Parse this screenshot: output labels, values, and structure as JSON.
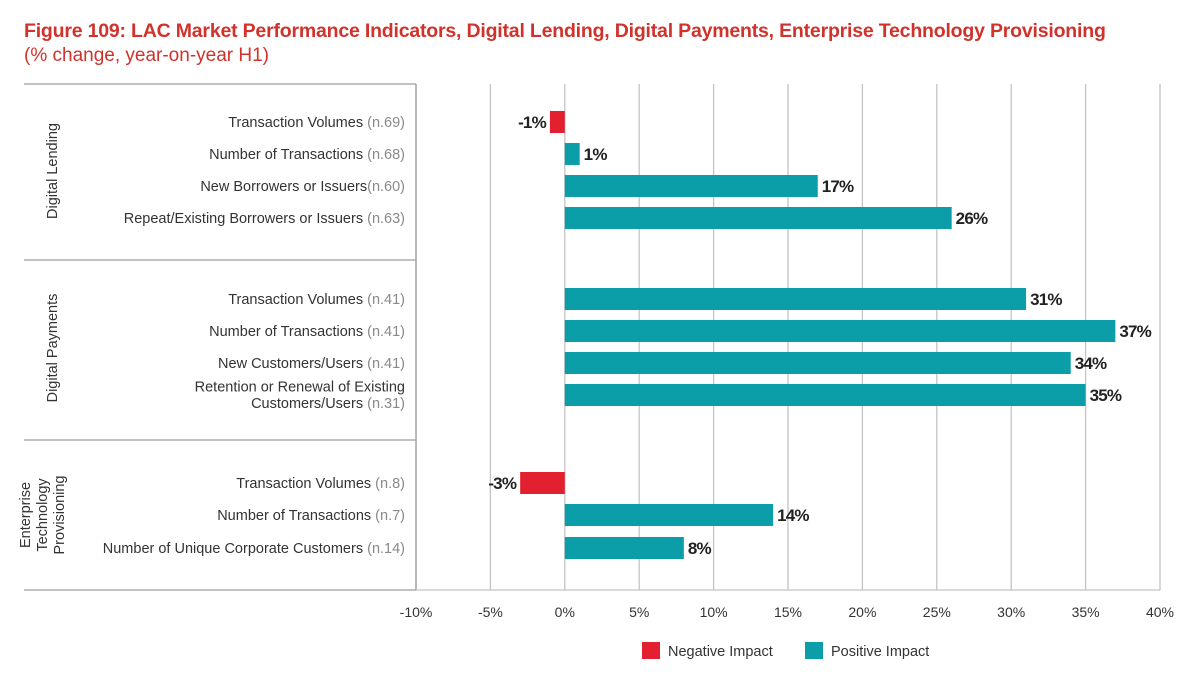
{
  "title": "Figure 109: LAC Market Performance Indicators, Digital Lending, Digital Payments, Enterprise Technology Provisioning",
  "subtitle": "(% change, year-on-year H1)",
  "colors": {
    "negative": "#e2202f",
    "positive": "#0c9ea8",
    "title": "#d1322b"
  },
  "chart_data": {
    "type": "bar",
    "orientation": "horizontal",
    "xlim": [
      -10,
      40
    ],
    "xticks": [
      -10,
      -5,
      0,
      5,
      10,
      15,
      20,
      25,
      30,
      35,
      40
    ],
    "tick_labels": [
      "-10%",
      "-5%",
      "0%",
      "5%",
      "10%",
      "15%",
      "20%",
      "25%",
      "30%",
      "35%",
      "40%"
    ],
    "grid": true,
    "legend": {
      "position": "bottom-center",
      "items": [
        {
          "name": "Negative Impact",
          "color": "#e2202f"
        },
        {
          "name": "Positive Impact",
          "color": "#0c9ea8"
        }
      ]
    },
    "groups": [
      {
        "name": "Digital Lending",
        "name_lines": [
          "Digital Lending"
        ],
        "items": [
          {
            "label": [
              "Transaction Volumes "
            ],
            "n": "(n.69)",
            "value": -1,
            "value_label": "-1%"
          },
          {
            "label": [
              "Number of Transactions "
            ],
            "n": "(n.68)",
            "value": 1,
            "value_label": "1%"
          },
          {
            "label": [
              "New Borrowers or Issuers"
            ],
            "n": "(n.60)",
            "value": 17,
            "value_label": "17%"
          },
          {
            "label": [
              "Repeat/Existing Borrowers or Issuers "
            ],
            "n": "(n.63)",
            "value": 26,
            "value_label": "26%"
          }
        ]
      },
      {
        "name": "Digital Payments",
        "name_lines": [
          "Digital Payments"
        ],
        "items": [
          {
            "label": [
              "Transaction Volumes "
            ],
            "n": "(n.41)",
            "value": 31,
            "value_label": "31%"
          },
          {
            "label": [
              "Number of Transactions "
            ],
            "n": "(n.41)",
            "value": 37,
            "value_label": "37%"
          },
          {
            "label": [
              "New Customers/Users "
            ],
            "n": "(n.41)",
            "value": 34,
            "value_label": "34%"
          },
          {
            "label": [
              "Retention or Renewal of Existing",
              "Customers/Users "
            ],
            "n": "(n.31)",
            "value": 35,
            "value_label": "35%"
          }
        ]
      },
      {
        "name": "Enterprise Technology Provisioning",
        "name_lines": [
          "Enterprise",
          "Technology",
          "Provisioning"
        ],
        "items": [
          {
            "label": [
              "Transaction Volumes "
            ],
            "n": "(n.8)",
            "value": -3,
            "value_label": "-3%"
          },
          {
            "label": [
              "Number of Transactions "
            ],
            "n": "(n.7)",
            "value": 14,
            "value_label": "14%"
          },
          {
            "label": [
              "Number of Unique Corporate Customers "
            ],
            "n": "(n.14)",
            "value": 8,
            "value_label": "8%"
          }
        ]
      }
    ]
  }
}
